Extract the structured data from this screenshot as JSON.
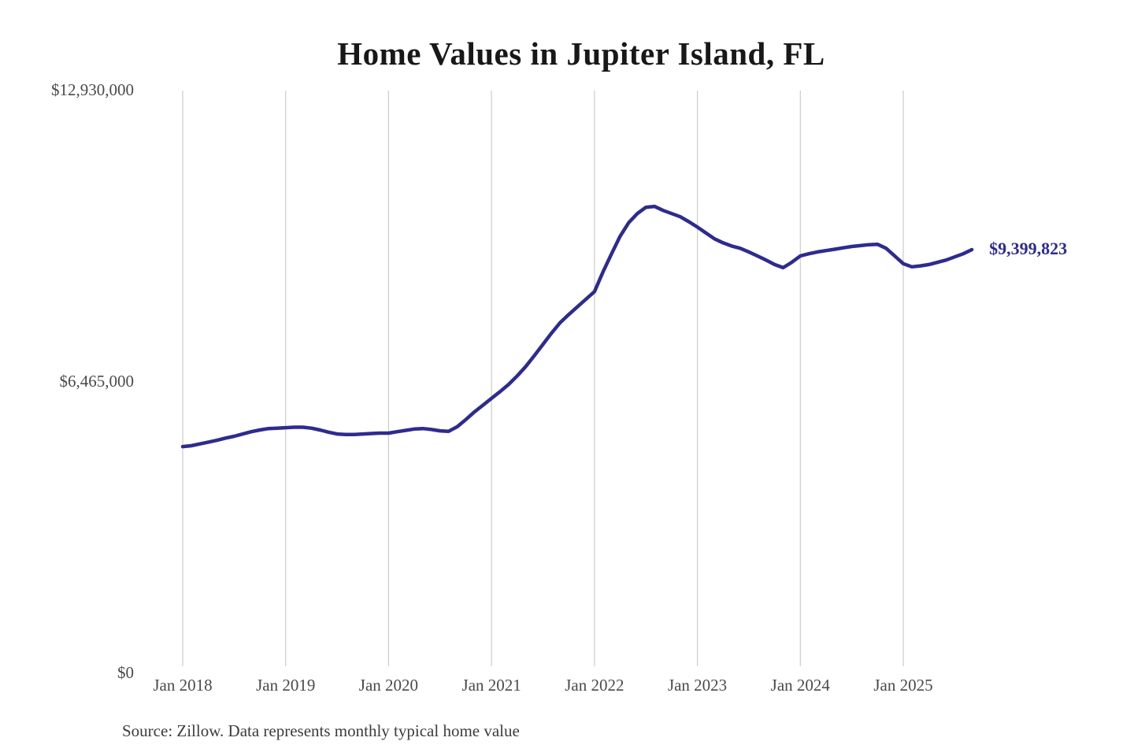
{
  "source": {
    "text": "Source: Zillow. Data represents monthly typical home value"
  },
  "chart_data": {
    "type": "line",
    "title": "Home Values in Jupiter Island, FL",
    "unit": "USD",
    "cadence": "monthly",
    "start_month": "2018-01",
    "end_month": "2025-09",
    "ylim": [
      0,
      12930000
    ],
    "grid": "vertical-year-gridlines",
    "legend": "none",
    "line_color": "#2e2b8f",
    "grid_color": "#cccccc",
    "end_label": "$9,399,823",
    "end_value": 9399823,
    "y_ticks": [
      {
        "label": "$12,930,000",
        "value": 12930000
      },
      {
        "label": "$6,465,000",
        "value": 6465000
      },
      {
        "label": "$0",
        "value": 0
      }
    ],
    "x_ticks": [
      {
        "label": "Jan 2018",
        "month_index": 0
      },
      {
        "label": "Jan 2019",
        "month_index": 12
      },
      {
        "label": "Jan 2020",
        "month_index": 24
      },
      {
        "label": "Jan 2021",
        "month_index": 36
      },
      {
        "label": "Jan 2022",
        "month_index": 48
      },
      {
        "label": "Jan 2023",
        "month_index": 60
      },
      {
        "label": "Jan 2024",
        "month_index": 72
      },
      {
        "label": "Jan 2025",
        "month_index": 84
      }
    ],
    "series": [
      {
        "name": "Typical home value",
        "monthly_values": [
          5030000,
          5050000,
          5090000,
          5130000,
          5170000,
          5220000,
          5260000,
          5310000,
          5360000,
          5400000,
          5430000,
          5440000,
          5450000,
          5460000,
          5460000,
          5440000,
          5400000,
          5350000,
          5310000,
          5300000,
          5300000,
          5310000,
          5320000,
          5330000,
          5330000,
          5360000,
          5390000,
          5420000,
          5430000,
          5410000,
          5380000,
          5370000,
          5470000,
          5630000,
          5800000,
          5950000,
          6100000,
          6250000,
          6410000,
          6600000,
          6810000,
          7050000,
          7300000,
          7550000,
          7780000,
          7960000,
          8130000,
          8300000,
          8470000,
          8910000,
          9310000,
          9700000,
          10000000,
          10200000,
          10340000,
          10360000,
          10270000,
          10200000,
          10130000,
          10020000,
          9900000,
          9770000,
          9640000,
          9550000,
          9480000,
          9430000,
          9350000,
          9260000,
          9170000,
          9070000,
          9000000,
          9120000,
          9260000,
          9310000,
          9350000,
          9380000,
          9410000,
          9440000,
          9470000,
          9490000,
          9510000,
          9520000,
          9430000,
          9260000,
          9090000,
          9020000,
          9040000,
          9070000,
          9120000,
          9170000,
          9240000,
          9310000,
          9399823
        ]
      }
    ]
  }
}
